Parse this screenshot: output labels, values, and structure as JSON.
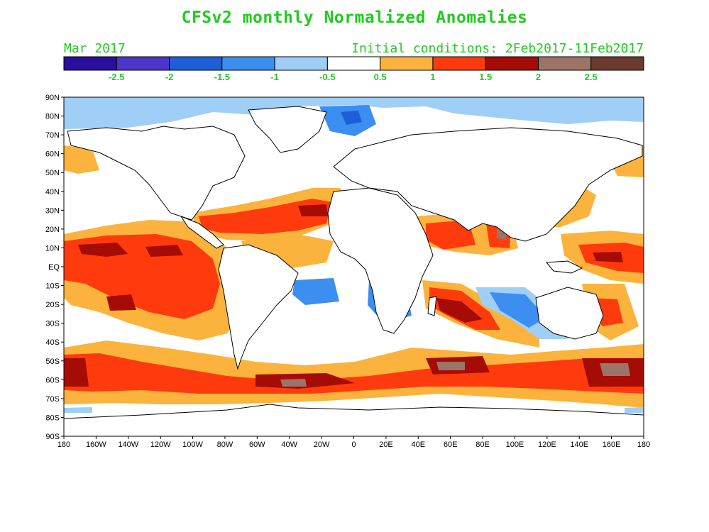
{
  "title": "CFSv2 monthly Normalized Anomalies",
  "month_label": "Mar 2017",
  "init_label": "Initial conditions: 2Feb2017-11Feb2017",
  "colorbar": {
    "colors": [
      "#2a0f9e",
      "#4b36c9",
      "#1d5fd6",
      "#3c8ef0",
      "#9fcff7",
      "#ffffff",
      "#fbb33d",
      "#ff3b0d",
      "#a60c06",
      "#9c7468",
      "#6b3b30"
    ],
    "labels": [
      "-2.5",
      "-2",
      "-1.5",
      "-1",
      "-0.5",
      "0.5",
      "1",
      "1.5",
      "2",
      "2.5"
    ]
  },
  "map": {
    "lat_labels": [
      "90N",
      "80N",
      "70N",
      "60N",
      "50N",
      "40N",
      "30N",
      "20N",
      "10N",
      "EQ",
      "10S",
      "20S",
      "30S",
      "40S",
      "50S",
      "60S",
      "70S",
      "80S",
      "90S"
    ],
    "lon_labels": [
      "180",
      "160W",
      "140W",
      "120W",
      "100W",
      "80W",
      "60W",
      "40W",
      "20W",
      "0",
      "20E",
      "40E",
      "60E",
      "80E",
      "100E",
      "120E",
      "140E",
      "160E",
      "180"
    ]
  }
}
